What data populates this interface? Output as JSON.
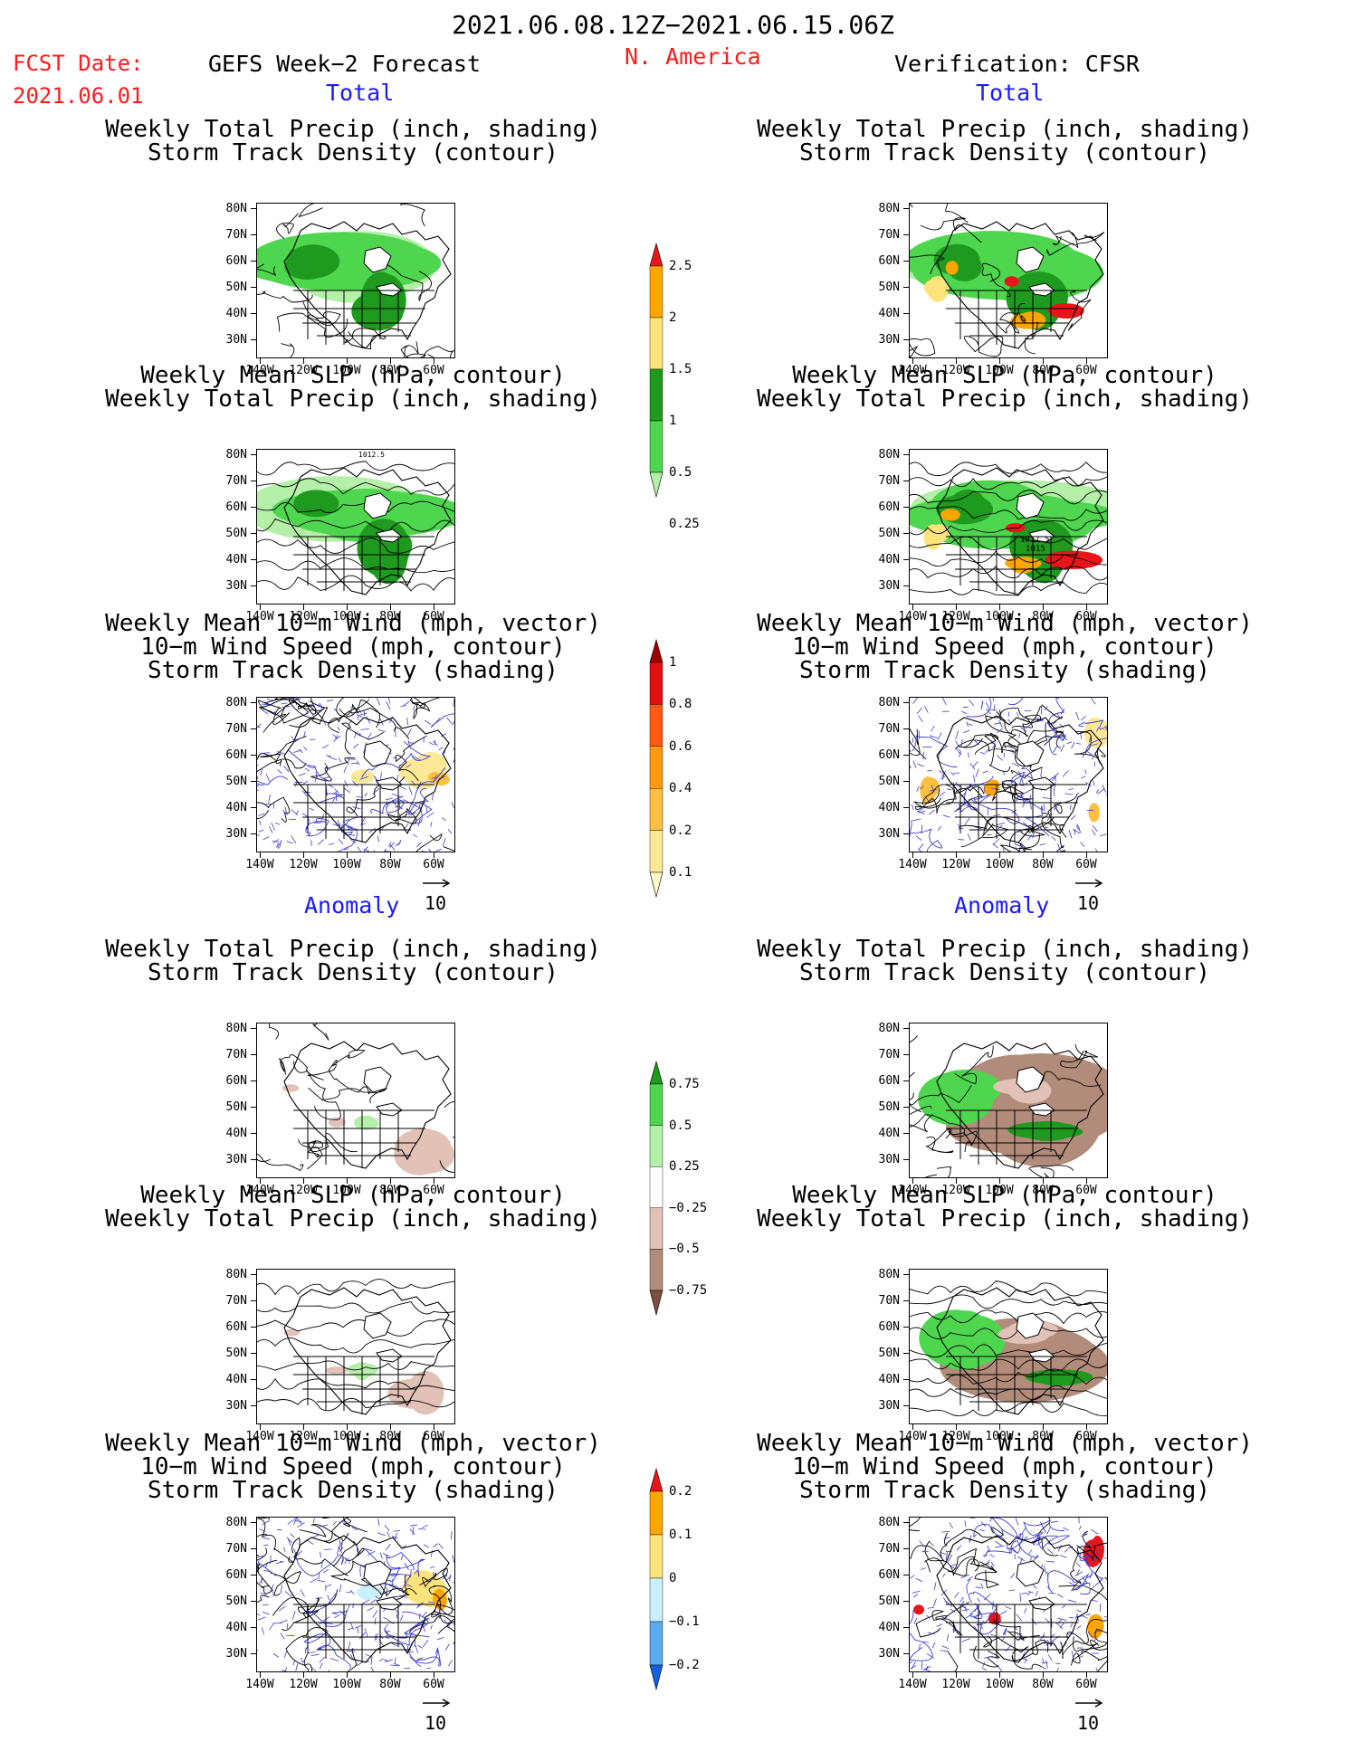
{
  "header": {
    "date_range": "2021.06.08.12Z−2021.06.15.06Z",
    "fcst_label": "FCST Date:",
    "fcst_date": "2021.06.01",
    "left_title": "GEFS Week−2 Forecast",
    "region": "N. America",
    "right_title": "Verification: CFSR",
    "total_label": "Total",
    "anomaly_label": "Anomaly"
  },
  "panel_titles": {
    "precip_track": [
      "Weekly Total Precip (inch, shading)",
      "Storm Track Density (contour)"
    ],
    "slp_precip": [
      "Weekly Mean SLP (hPa, contour)",
      "Weekly Total Precip (inch, shading)"
    ],
    "wind_track": [
      "Weekly Mean 10−m Wind (mph, vector)",
      "10−m Wind Speed (mph, contour)",
      "Storm Track Density (shading)"
    ]
  },
  "axes": {
    "lat_labels": [
      "80N",
      "70N",
      "60N",
      "50N",
      "40N",
      "30N"
    ],
    "lon_labels": [
      "140W",
      "120W",
      "100W",
      "80W",
      "60W"
    ]
  },
  "vector_ref": "10",
  "map_annotations": {
    "slp_left_top": "1012.5",
    "slp_right_a": "1017.5",
    "slp_right_b": "1015"
  },
  "colorbars": {
    "precip_total": {
      "labels": [
        "2.5",
        "2",
        "1.5",
        "1",
        "0.5",
        "0.25"
      ],
      "colors": [
        "#e8161a",
        "#ffa500",
        "#fde37c",
        "#1e9a1e",
        "#4ed64e",
        "#b4f0a8"
      ]
    },
    "track_total": {
      "labels": [
        "1",
        "0.8",
        "0.6",
        "0.4",
        "0.2",
        "0.1"
      ],
      "colors": [
        "#a00000",
        "#e01010",
        "#ff5a10",
        "#ff9a10",
        "#ffc040",
        "#fde896",
        "#fff8c8"
      ]
    },
    "precip_anom": {
      "labels": [
        "0.75",
        "0.5",
        "0.25",
        "−0.25",
        "−0.5",
        "−0.75"
      ],
      "colors": [
        "#1e9a1e",
        "#4ed64e",
        "#b4f0a8",
        "#ffffff",
        "#e2c2b6",
        "#b28c7a",
        "#7a5040"
      ]
    },
    "track_anom": {
      "labels": [
        "0.2",
        "0.1",
        "0",
        "−0.1",
        "−0.2"
      ],
      "colors": [
        "#e8161a",
        "#ffa500",
        "#fde37c",
        "#c8f0ff",
        "#5aaaee",
        "#1060e0"
      ]
    }
  },
  "colors": {
    "title_red": "#ff1a1a",
    "title_blue": "#1a1aff",
    "precip_green": "#4ed64e",
    "precip_dark_green": "#1e9a1e",
    "precip_light_green": "#b4f0a8",
    "anom_brown": "#b28c7a",
    "anom_light_brown": "#e2c2b6",
    "wind_vector": "#3a3acc"
  }
}
